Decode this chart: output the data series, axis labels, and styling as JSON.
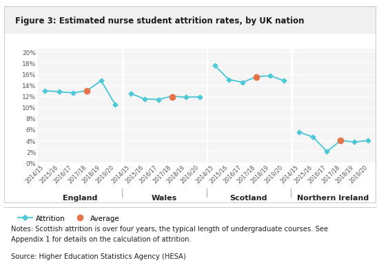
{
  "title": "Figure 3: Estimated nurse student attrition rates, by UK nation",
  "regions": [
    "England",
    "Wales",
    "Scotland",
    "Northern Ireland"
  ],
  "years": [
    "2014/15",
    "2015/16",
    "2016/17",
    "2017/18",
    "2018/19",
    "2019/20"
  ],
  "attrition": {
    "England": [
      0.13,
      0.128,
      0.126,
      0.13,
      0.148,
      0.105
    ],
    "Wales": [
      0.125,
      0.115,
      0.114,
      0.12,
      0.118,
      0.119
    ],
    "Scotland": [
      0.175,
      0.15,
      0.145,
      0.155,
      0.157,
      0.148
    ],
    "Northern Ireland": [
      0.055,
      0.046,
      0.02,
      0.04,
      0.037,
      0.04
    ]
  },
  "average": {
    "England": 0.1295,
    "Wales": 0.119,
    "Scotland": 0.155,
    "Northern Ireland": 0.04
  },
  "average_year_index": 3,
  "line_color": "#4dc8d8",
  "average_color": "#e8734a",
  "chart_bg": "#f0f0f0",
  "outer_bg": "#ffffff",
  "panel_bg": "#f5f5f5",
  "y_ticks": [
    0.0,
    0.02,
    0.04,
    0.06,
    0.08,
    0.1,
    0.12,
    0.14,
    0.16,
    0.18,
    0.2
  ],
  "y_tick_labels": [
    "0%",
    "2%",
    "4%",
    "6%",
    "8%",
    "10%",
    "12%",
    "14%",
    "16%",
    "18%",
    "20%"
  ],
  "notes_line1": "Notes: Scottish attrition is over four years, the typical length of undergraduate courses. See",
  "notes_line2": "Appendix 1 for details on the calculation of attrition.",
  "source": "Source: Higher Education Statistics Agency (HESA)"
}
